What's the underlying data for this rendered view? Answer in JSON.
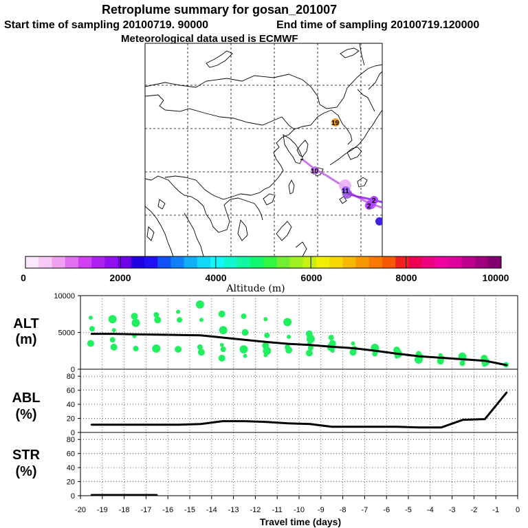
{
  "header": {
    "title": "Retroplume summary for gosan_201007",
    "start": "Start time of sampling 20100719. 90000",
    "end": "End time of sampling 20100719.120000",
    "met": "Meteorological data used is ECMWF"
  },
  "map": {
    "point_labels": [
      "19",
      "10",
      "11",
      "2",
      "2"
    ],
    "point_colors": [
      "#f0a020",
      "#c078e8",
      "#a060ff",
      "#b040ff",
      "#4020e0"
    ]
  },
  "colorbar": {
    "title": "Altitude (m)",
    "tick_labels": [
      "0",
      "2000",
      "4000",
      "6000",
      "8000",
      "10000"
    ],
    "colors": [
      "#fde8fd",
      "#f8c8f8",
      "#f0a0f0",
      "#e070f0",
      "#d040f0",
      "#b020f0",
      "#9010f0",
      "#7000e8",
      "#2000e0",
      "#2010f8",
      "#1050f8",
      "#1080f8",
      "#10b0f8",
      "#10d8f8",
      "#10f8f8",
      "#10f8d0",
      "#10f8a0",
      "#10f870",
      "#30f840",
      "#70f030",
      "#a0f020",
      "#c8f010",
      "#f0f000",
      "#f8d800",
      "#f8b800",
      "#f89800",
      "#f87800",
      "#f85800",
      "#f02020",
      "#f00050",
      "#f00080",
      "#f000a0",
      "#e000a0",
      "#c00090",
      "#a00080",
      "#800070"
    ]
  },
  "panels": {
    "alt_label_1": "ALT",
    "alt_label_2": "(m)",
    "abl_label_1": "ABL",
    "abl_label_2": "(%)",
    "str_label_1": "STR",
    "str_label_2": "(%)",
    "x_title": "Travel time (days)",
    "marker_color": "#20f060"
  },
  "chart_data": [
    {
      "type": "line",
      "title": "ALT (m)",
      "ylabel": "ALT (m)",
      "xlim": [
        -20,
        0
      ],
      "ylim": [
        0,
        10000
      ],
      "ytick_labels": [
        "0",
        "5000",
        "10000"
      ],
      "x": [
        -19.5,
        -18.5,
        -17.5,
        -16.5,
        -15.5,
        -14.5,
        -13.5,
        -12.5,
        -11.5,
        -10.5,
        -9.5,
        -8.5,
        -7.5,
        -6.5,
        -5.5,
        -4.5,
        -3.5,
        -2.5,
        -1.5,
        -0.5
      ],
      "values": [
        4800,
        4800,
        4750,
        4700,
        4650,
        4600,
        4300,
        4000,
        3700,
        3450,
        3300,
        3050,
        2850,
        2500,
        2100,
        1750,
        1550,
        1350,
        1150,
        550
      ],
      "cluster_markers": [
        {
          "x": -19.5,
          "y": [
            7000,
            5500,
            3500
          ]
        },
        {
          "x": -18.5,
          "y": [
            6800,
            5300,
            4000,
            3000
          ]
        },
        {
          "x": -17.5,
          "y": [
            7200,
            6300,
            4500,
            2800
          ]
        },
        {
          "x": -16.5,
          "y": [
            7400,
            6700,
            2800
          ]
        },
        {
          "x": -15.5,
          "y": [
            7800,
            6700,
            2700
          ]
        },
        {
          "x": -14.5,
          "y": [
            8800,
            6700,
            3000,
            2300
          ]
        },
        {
          "x": -13.5,
          "y": [
            7500,
            5300,
            3300,
            2700,
            1500
          ]
        },
        {
          "x": -12.5,
          "y": [
            7200,
            5000,
            2700,
            1800
          ]
        },
        {
          "x": -11.5,
          "y": [
            6800,
            4600,
            3200,
            2500,
            1900
          ]
        },
        {
          "x": -10.5,
          "y": [
            6400,
            4400,
            3000,
            2600
          ]
        },
        {
          "x": -9.5,
          "y": [
            4800,
            4100,
            3500,
            2900,
            2200
          ]
        },
        {
          "x": -8.5,
          "y": [
            4300,
            3500,
            3000,
            2500
          ]
        },
        {
          "x": -7.5,
          "y": [
            3500,
            2800,
            2300
          ]
        },
        {
          "x": -6.5,
          "y": [
            2900,
            2400,
            2100
          ]
        },
        {
          "x": -5.5,
          "y": [
            2600,
            2100,
            1700
          ]
        },
        {
          "x": -4.5,
          "y": [
            2100,
            1700,
            1300
          ]
        },
        {
          "x": -3.5,
          "y": [
            1900,
            1500,
            1100
          ]
        },
        {
          "x": -2.5,
          "y": [
            1700,
            1300,
            800
          ]
        },
        {
          "x": -1.5,
          "y": [
            1500,
            1000,
            600
          ]
        },
        {
          "x": -0.5,
          "y": [
            600
          ]
        }
      ]
    },
    {
      "type": "line",
      "title": "ABL (%)",
      "ylabel": "ABL (%)",
      "xlim": [
        -20,
        0
      ],
      "ylim": [
        0,
        90
      ],
      "ytick_labels": [
        "0",
        "20",
        "40",
        "60",
        "80"
      ],
      "x": [
        -19.5,
        -18.5,
        -17.5,
        -16.5,
        -15.5,
        -14.5,
        -13.5,
        -12.5,
        -11.5,
        -10.5,
        -9.5,
        -8.5,
        -7.5,
        -6.5,
        -5.5,
        -4.5,
        -3.5,
        -2.5,
        -1.5,
        -0.5
      ],
      "values": [
        11,
        11,
        11,
        11,
        11,
        12,
        16,
        16,
        15,
        13,
        12,
        8,
        8,
        8,
        8,
        7,
        7,
        18,
        19,
        57
      ]
    },
    {
      "type": "line",
      "title": "STR (%)",
      "ylabel": "STR (%)",
      "xlim": [
        -20,
        0
      ],
      "ylim": [
        0,
        90
      ],
      "ytick_labels": [
        "0",
        "20",
        "40",
        "60",
        "80"
      ],
      "x": [
        -19.5,
        -18.5,
        -17.5,
        -16.5
      ],
      "values": [
        1,
        1,
        1,
        1
      ],
      "xtick_labels": [
        "-20",
        "-19",
        "-18",
        "-17",
        "-16",
        "-15",
        "-14",
        "-13",
        "-12",
        "-11",
        "-10",
        "-9",
        "-8",
        "-7",
        "-6",
        "-5",
        "-4",
        "-3",
        "-2",
        "-1",
        "0"
      ]
    }
  ]
}
